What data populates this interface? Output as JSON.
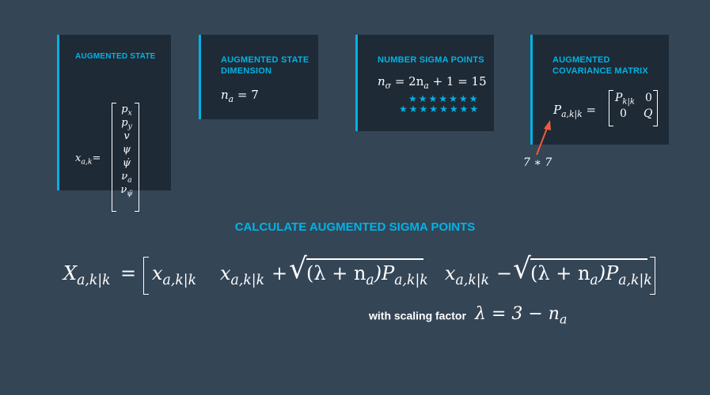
{
  "cards": {
    "augmented_state": {
      "title": "AUGMENTED STATE",
      "label": "x",
      "label_sub": "a,k",
      "label_suffix": "="
    },
    "state_vector": [
      {
        "base": "p",
        "sub": "x"
      },
      {
        "base": "p",
        "sub": "y"
      },
      {
        "base": "v",
        "sub": ""
      },
      {
        "base": "ψ",
        "sub": ""
      },
      {
        "base": "ψ̇",
        "sub": ""
      },
      {
        "base": "ν",
        "sub": "a"
      },
      {
        "base": "ν",
        "sub": "ψ̈"
      }
    ],
    "augmented_dimension": {
      "title": "AUGMENTED STATE DIMENSION",
      "lhs": "n",
      "lhs_sub": "a",
      "rhs": " = 7"
    },
    "number_sigma_points": {
      "title": "NUMBER SIGMA POINTS",
      "lhs": "n",
      "lhs_sub": "σ",
      "rhs_a": " = 2n",
      "rhs_sub": "a",
      "rhs_b": " + 1 = 15"
    },
    "augmented_covariance": {
      "title": "AUGMENTED COVARIANCE MATRIX",
      "lhs": "P",
      "lhs_sub": "a,k|k",
      "eq": " =",
      "m11": "P",
      "m11_sub": "k|k",
      "m12": "0",
      "m21": "0",
      "m22": "Q"
    }
  },
  "annotation": "7 ∗ 7",
  "heading": "CALCULATE AUGMENTED SIGMA POINTS",
  "formula": {
    "lhs": "X",
    "lhs_sub": "a,k|k",
    "eq": "=",
    "term1": "x",
    "term1_sub": "a,k|k",
    "term2": "x",
    "term2_sub": "a,k|k",
    "plus": "+",
    "sqrt_inner": "(λ + n",
    "sqrt_sub": "a",
    "sqrt_inner2": ")P",
    "sqrt_sub2": "a,k|k",
    "term3": "x",
    "term3_sub": "a,k|k",
    "minus": "−"
  },
  "scaling": {
    "label": "with scaling factor",
    "eq_a": "λ = 3 − n",
    "eq_sub": "a"
  },
  "colors": {
    "background": "#344556",
    "card": "#1e2a36",
    "accent": "#02b3e4",
    "arrow": "#f05a3c"
  }
}
